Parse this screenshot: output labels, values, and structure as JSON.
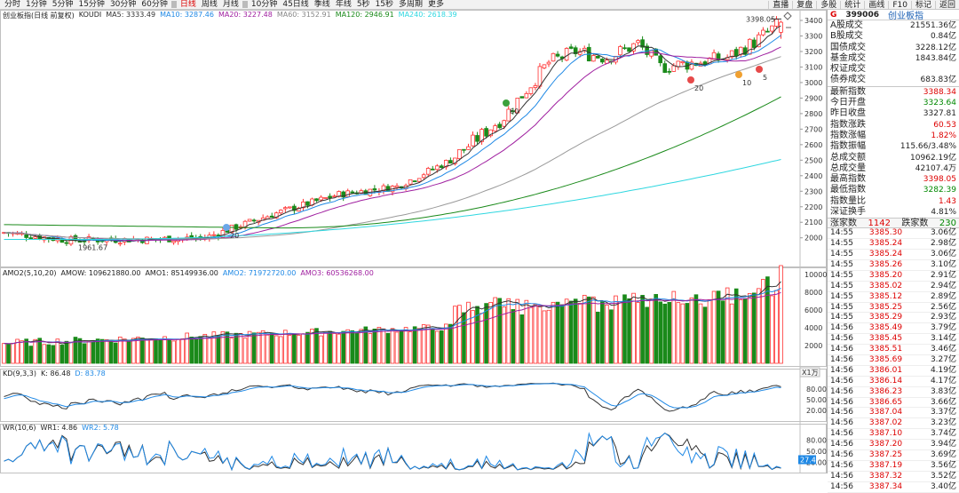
{
  "toolbar": {
    "left": [
      "分时",
      "1分钟",
      "5分钟",
      "15分钟",
      "30分钟",
      "60分钟",
      "日线",
      "周线",
      "月线",
      "10分钟",
      "45日线",
      "季线",
      "年线",
      "5秒",
      "15秒",
      "多周期",
      "更多"
    ],
    "active_index": 6,
    "right": [
      "直播",
      "复盘",
      "多股",
      "统计",
      "画线",
      "F10",
      "标记",
      "返回"
    ]
  },
  "legend_main": {
    "name": "创业板指(日线 前复权)",
    "formula": "KOUDI",
    "ma5": "MA5: 3333.49",
    "ma10": "MA10: 3287.46",
    "ma20": "MA20: 3227.48",
    "ma60": "MA60: 3152.91",
    "ma120": "MA120: 2946.91",
    "ma240": "MA240: 2618.39"
  },
  "legend_amo": {
    "name": "AMO2(5,10,20)",
    "amow": "AMOW: 109621880.00",
    "amo1": "AMO1: 85149936.00",
    "amo2": "AMO2: 71972720.00",
    "amo3": "AMO3: 60536268.00"
  },
  "legend_kd": {
    "name": "KD(9,3,3)",
    "k": "K: 86.48",
    "d": "D: 83.78"
  },
  "legend_wr": {
    "name": "WR(10,6)",
    "wr1": "WR1: 4.86",
    "wr2": "WR2: 5.78"
  },
  "annotations": {
    "high": "3398.05",
    "low": "1961.67",
    "marks": [
      "20",
      "60",
      "20",
      "10",
      "5"
    ],
    "wr_flag": "27.4"
  },
  "axis": {
    "price": [
      "3400",
      "3300",
      "3200",
      "3100",
      "3000",
      "2900",
      "2800",
      "2700",
      "2600",
      "2500",
      "2400",
      "2300",
      "2200",
      "2100",
      "2000"
    ],
    "volume": [
      "10000",
      "8000",
      "6000",
      "4000",
      "2000"
    ],
    "volume_unit": "X1万",
    "kd": [
      "80.00",
      "50.00",
      "20.00"
    ],
    "wr": [
      "80.00",
      "50.00",
      "20.00"
    ]
  },
  "colors": {
    "up": "#ff3232",
    "down": "#1a8a1a",
    "ma5": "#333333",
    "ma10": "#1e88e5",
    "ma20": "#a020a0",
    "ma60": "#9a9a9a",
    "ma120": "#1a8a1a",
    "ma240": "#2fd7e0"
  },
  "quote": {
    "code": "399006",
    "name": "创业板指",
    "flag": "G",
    "shares": [
      {
        "label": "A股成交",
        "value": "21551.36亿"
      },
      {
        "label": "B股成交",
        "value": "0.84亿"
      },
      {
        "label": "国债成交",
        "value": "3228.12亿"
      },
      {
        "label": "基金成交",
        "value": "1843.84亿"
      },
      {
        "label": "权证成交",
        "value": ""
      },
      {
        "label": "债券成交",
        "value": "683.83亿"
      }
    ],
    "stats": [
      {
        "label": "最新指数",
        "value": "3388.34",
        "c": "red"
      },
      {
        "label": "今日开盘",
        "value": "3323.64",
        "c": "grn"
      },
      {
        "label": "昨日收盘",
        "value": "3327.81",
        "c": ""
      },
      {
        "label": "指数涨跌",
        "value": "60.53",
        "c": "red"
      },
      {
        "label": "指数涨幅",
        "value": "1.82%",
        "c": "red"
      },
      {
        "label": "指数振幅",
        "value": "115.66/3.48%",
        "c": ""
      },
      {
        "label": "总成交额",
        "value": "10962.19亿",
        "c": ""
      },
      {
        "label": "总成交量",
        "value": "42107.4万",
        "c": ""
      },
      {
        "label": "最高指数",
        "value": "3398.05",
        "c": "red"
      },
      {
        "label": "最低指数",
        "value": "3282.39",
        "c": "grn"
      },
      {
        "label": "指数量比",
        "value": "1.43",
        "c": "red"
      },
      {
        "label": "深证换手",
        "value": "4.81%",
        "c": ""
      }
    ],
    "up_label": "涨家数",
    "up": "1142",
    "down_label": "跌家数",
    "down": "230",
    "ticks": [
      {
        "t": "14:55",
        "p": "3385.30",
        "v": "3.06亿"
      },
      {
        "t": "14:55",
        "p": "3385.24",
        "v": "2.98亿"
      },
      {
        "t": "14:55",
        "p": "3385.24",
        "v": "3.06亿"
      },
      {
        "t": "14:55",
        "p": "3385.26",
        "v": "3.10亿"
      },
      {
        "t": "14:55",
        "p": "3385.20",
        "v": "2.91亿"
      },
      {
        "t": "14:55",
        "p": "3385.02",
        "v": "2.94亿"
      },
      {
        "t": "14:55",
        "p": "3385.12",
        "v": "2.89亿"
      },
      {
        "t": "14:55",
        "p": "3385.25",
        "v": "2.56亿"
      },
      {
        "t": "14:55",
        "p": "3385.29",
        "v": "2.93亿"
      },
      {
        "t": "14:56",
        "p": "3385.49",
        "v": "3.79亿"
      },
      {
        "t": "14:56",
        "p": "3385.45",
        "v": "3.14亿"
      },
      {
        "t": "14:56",
        "p": "3385.51",
        "v": "3.46亿"
      },
      {
        "t": "14:56",
        "p": "3385.69",
        "v": "3.27亿"
      },
      {
        "t": "14:56",
        "p": "3386.01",
        "v": "4.19亿"
      },
      {
        "t": "14:56",
        "p": "3386.14",
        "v": "4.17亿"
      },
      {
        "t": "14:56",
        "p": "3386.23",
        "v": "3.83亿"
      },
      {
        "t": "14:56",
        "p": "3386.65",
        "v": "3.66亿"
      },
      {
        "t": "14:56",
        "p": "3387.04",
        "v": "3.37亿"
      },
      {
        "t": "14:56",
        "p": "3387.02",
        "v": "3.23亿"
      },
      {
        "t": "14:56",
        "p": "3387.10",
        "v": "3.74亿"
      },
      {
        "t": "14:56",
        "p": "3387.20",
        "v": "3.94亿"
      },
      {
        "t": "14:56",
        "p": "3387.25",
        "v": "3.69亿"
      },
      {
        "t": "14:56",
        "p": "3387.19",
        "v": "3.56亿"
      },
      {
        "t": "14:56",
        "p": "3387.32",
        "v": "3.52亿"
      },
      {
        "t": "14:56",
        "p": "3387.34",
        "v": "3.40亿"
      }
    ]
  }
}
